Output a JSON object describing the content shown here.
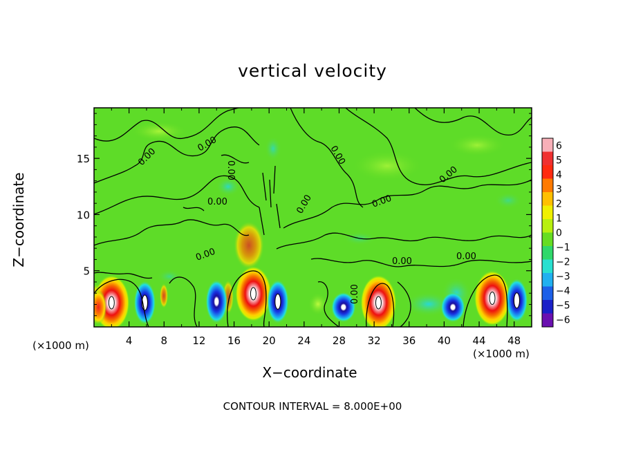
{
  "chart_data": {
    "type": "heatmap",
    "title": "vertical velocity",
    "xlabel": "X−coordinate",
    "ylabel": "Z−coordinate",
    "x_unit_label": "(×1000 m)",
    "footer": "CONTOUR INTERVAL = 8.000E+00",
    "xlim": [
      0,
      50
    ],
    "ylim": [
      0,
      19.5
    ],
    "x_ticks": [
      4,
      8,
      12,
      16,
      20,
      24,
      28,
      32,
      36,
      40,
      44,
      48
    ],
    "y_ticks": [
      5,
      10,
      15
    ],
    "contour_label": "0.00",
    "colorbar": {
      "ticks": [
        "6",
        "5",
        "4",
        "3",
        "2",
        "1",
        "0",
        "−1",
        "−2",
        "−3",
        "−4",
        "−5",
        "−6"
      ],
      "range": [
        -6,
        6
      ]
    },
    "updrafts": [
      {
        "x": 2.0,
        "z": 2.4,
        "peak": 6
      },
      {
        "x": 18.2,
        "z": 3.2,
        "peak": 6
      },
      {
        "x": 32.5,
        "z": 2.4,
        "peak": 6
      },
      {
        "x": 45.5,
        "z": 2.8,
        "peak": 5
      },
      {
        "x": 0.5,
        "z": 2.0,
        "peak": 3
      }
    ],
    "downdrafts": [
      {
        "x": 5.8,
        "z": 2.4,
        "peak": -6
      },
      {
        "x": 14.0,
        "z": 2.5,
        "peak": -5
      },
      {
        "x": 21.0,
        "z": 2.5,
        "peak": -6
      },
      {
        "x": 28.5,
        "z": 2.0,
        "peak": -4
      },
      {
        "x": 41.0,
        "z": 2.0,
        "peak": -3
      },
      {
        "x": 48.3,
        "z": 2.6,
        "peak": -6
      }
    ]
  }
}
